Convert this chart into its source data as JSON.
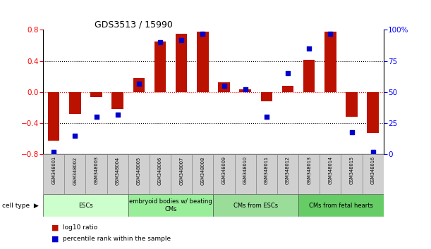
{
  "title": "GDS3513 / 15990",
  "samples": [
    "GSM348001",
    "GSM348002",
    "GSM348003",
    "GSM348004",
    "GSM348005",
    "GSM348006",
    "GSM348007",
    "GSM348008",
    "GSM348009",
    "GSM348010",
    "GSM348011",
    "GSM348012",
    "GSM348013",
    "GSM348014",
    "GSM348015",
    "GSM348016"
  ],
  "log10_ratio": [
    -0.62,
    -0.28,
    -0.06,
    -0.22,
    0.18,
    0.65,
    0.75,
    0.78,
    0.13,
    0.04,
    -0.12,
    0.08,
    0.42,
    0.78,
    -0.32,
    -0.52
  ],
  "percentile_rank": [
    2,
    15,
    30,
    32,
    57,
    90,
    92,
    97,
    55,
    52,
    30,
    65,
    85,
    97,
    18,
    2
  ],
  "cell_type_groups": [
    {
      "label": "ESCs",
      "start": 0,
      "end": 4,
      "color": "#ccffcc"
    },
    {
      "label": "embryoid bodies w/ beating\nCMs",
      "start": 4,
      "end": 8,
      "color": "#99ee99"
    },
    {
      "label": "CMs from ESCs",
      "start": 8,
      "end": 12,
      "color": "#99dd99"
    },
    {
      "label": "CMs from fetal hearts",
      "start": 12,
      "end": 16,
      "color": "#66cc66"
    }
  ],
  "bar_color": "#bb1100",
  "dot_color": "#0000cc",
  "left_ylim": [
    -0.8,
    0.8
  ],
  "right_ylim": [
    0,
    100
  ],
  "left_yticks": [
    -0.8,
    -0.4,
    0.0,
    0.4,
    0.8
  ],
  "right_yticks": [
    0,
    25,
    50,
    75,
    100
  ],
  "right_yticklabels": [
    "0",
    "25",
    "50",
    "75",
    "100%"
  ]
}
